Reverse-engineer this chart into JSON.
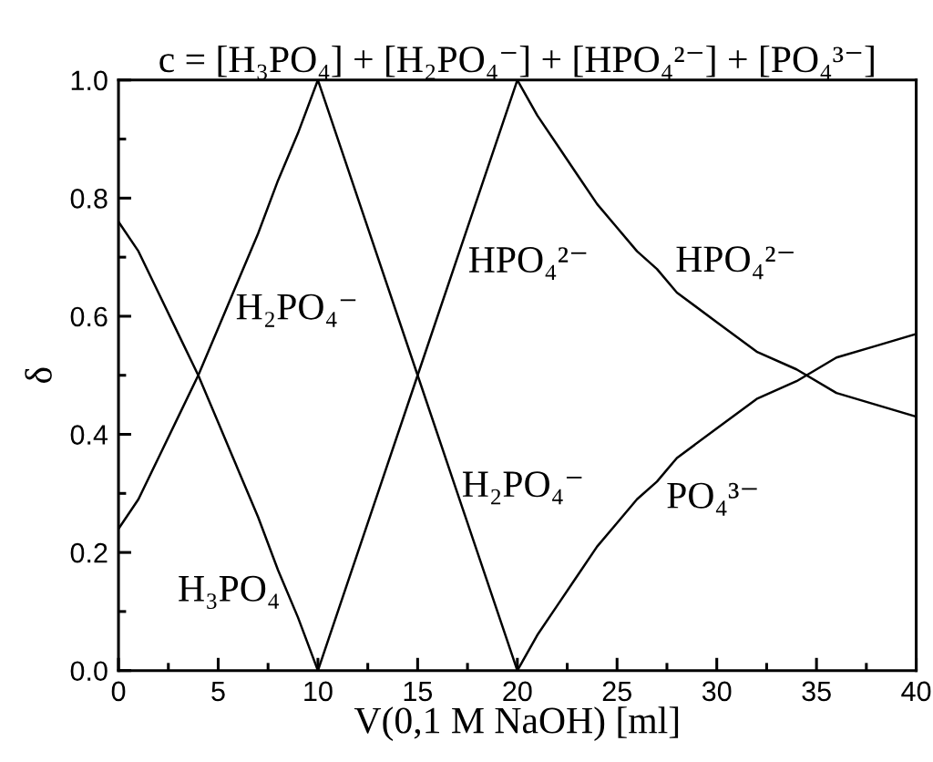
{
  "chart_data": {
    "type": "line",
    "title": "c = [H₃PO₄] + [H₂PO₄⁻] + [HPO₄²⁻] + [PO₄³⁻]",
    "xlabel": "V(0,1 M NaOH) [ml]",
    "ylabel": "δ",
    "xlim": [
      0,
      40
    ],
    "xticks": [
      0,
      {
        "value": 2.5,
        "label": null
      },
      5,
      {
        "value": 7.5,
        "label": null
      },
      10,
      {
        "value": 12.5,
        "label": null
      },
      15,
      {
        "value": 17.5,
        "label": null
      },
      20,
      {
        "value": 22.5,
        "label": null
      },
      25,
      {
        "value": 27.5,
        "label": null
      },
      30,
      {
        "value": 32.5,
        "label": null
      },
      35,
      {
        "value": 37.5,
        "label": null
      },
      40
    ],
    "ylim": [
      0,
      1.0
    ],
    "yticks": [
      {
        "value": 0,
        "label": "0.0"
      },
      {
        "value": 0.1,
        "label": null
      },
      0.2,
      {
        "value": 0.3,
        "label": null
      },
      0.4,
      {
        "value": 0.5,
        "label": null
      },
      0.6,
      {
        "value": 0.7,
        "label": null
      },
      0.8,
      {
        "value": 0.9,
        "label": null
      },
      {
        "value": 1,
        "label": "1.0"
      }
    ],
    "grid": false,
    "marker": "none",
    "line_style": "solid",
    "series": [
      {
        "name": "H₃PO₄",
        "color": "#000000",
        "x": [
          0,
          1,
          2,
          3,
          4,
          5,
          6,
          7,
          8,
          9,
          10
        ],
        "values": [
          0.76,
          0.71,
          0.64,
          0.57,
          0.5,
          0.42,
          0.34,
          0.26,
          0.17,
          0.09,
          0.0
        ]
      },
      {
        "name": "H₂PO₄⁻",
        "color": "#000000",
        "x": [
          0,
          1,
          2,
          3,
          4,
          5,
          6,
          7,
          8,
          9,
          10,
          15,
          20
        ],
        "values": [
          0.24,
          0.29,
          0.36,
          0.43,
          0.5,
          0.58,
          0.66,
          0.74,
          0.83,
          0.91,
          1.0,
          0.5,
          0.0
        ]
      },
      {
        "name": "HPO₄²⁻",
        "color": "#000000",
        "x": [
          10,
          15,
          20,
          21,
          22,
          23,
          24,
          25,
          26,
          27,
          28,
          30,
          32,
          34,
          36,
          38,
          40
        ],
        "values": [
          0.0,
          0.5,
          1.0,
          0.94,
          0.89,
          0.84,
          0.79,
          0.75,
          0.71,
          0.68,
          0.64,
          0.59,
          0.54,
          0.51,
          0.47,
          0.45,
          0.43
        ]
      },
      {
        "name": "PO₄³⁻",
        "color": "#000000",
        "x": [
          20,
          21,
          22,
          23,
          24,
          25,
          26,
          27,
          28,
          30,
          32,
          34,
          36,
          38,
          40
        ],
        "values": [
          0.0,
          0.06,
          0.11,
          0.16,
          0.21,
          0.25,
          0.29,
          0.32,
          0.36,
          0.41,
          0.46,
          0.49,
          0.53,
          0.55,
          0.57
        ]
      }
    ]
  }
}
